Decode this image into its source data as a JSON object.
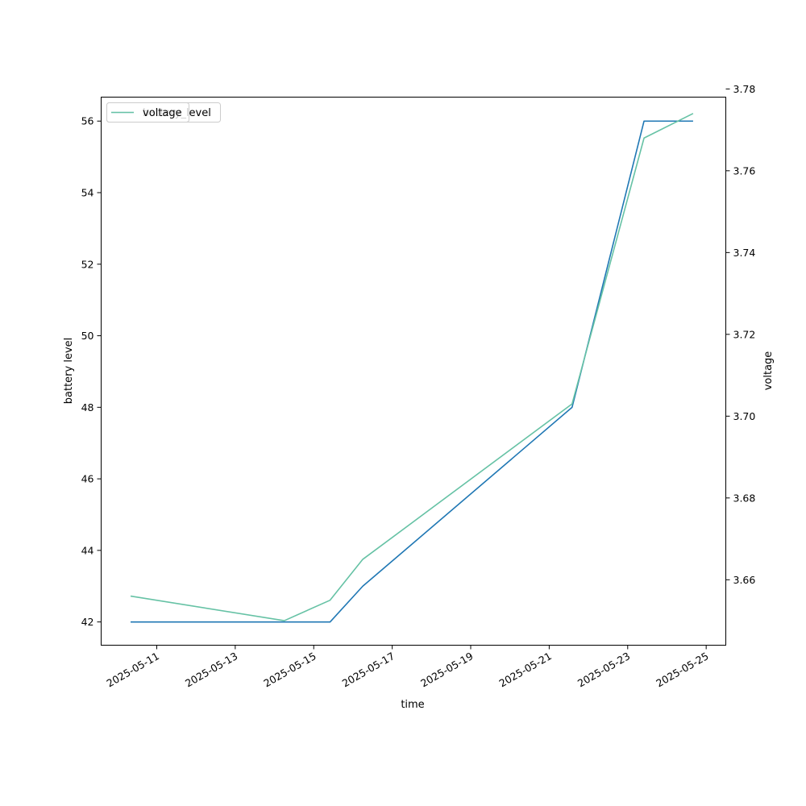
{
  "chart_data": {
    "type": "line",
    "title": "",
    "xlabel": "time",
    "ylabel_left": "battery level",
    "ylabel_right": "voltage",
    "x_tick_labels": [
      "2025-05-11",
      "2025-05-13",
      "2025-05-15",
      "2025-05-17",
      "2025-05-19",
      "2025-05-21",
      "2025-05-23",
      "2025-05-25"
    ],
    "y_left_ticks": [
      "42",
      "44",
      "46",
      "48",
      "50",
      "52",
      "54",
      "56"
    ],
    "y_right_ticks": [
      "3.66",
      "3.68",
      "3.70",
      "3.72",
      "3.74",
      "3.76",
      "3.78"
    ],
    "xlim": [
      "2025-05-09T14:00",
      "2025-05-25T12:00"
    ],
    "ylim_left": [
      41.35,
      56.67
    ],
    "ylim_right": [
      3.644,
      3.778
    ],
    "grid": false,
    "legend": [
      {
        "name": "battery_level",
        "placement": "top-left"
      },
      {
        "name": "voltage",
        "placement": "top-left"
      }
    ],
    "series": [
      {
        "name": "battery_level",
        "axis": "left",
        "color": "#1f77b4",
        "x": [
          "2025-05-10T08:00",
          "2025-05-14T06:00",
          "2025-05-15T10:00",
          "2025-05-16T06:00",
          "2025-05-21T14:00",
          "2025-05-23T10:00",
          "2025-05-24T16:00"
        ],
        "y": [
          42,
          42,
          42,
          43,
          48,
          56,
          56
        ]
      },
      {
        "name": "voltage",
        "axis": "right",
        "color": "#66c2a5",
        "x": [
          "2025-05-10T08:00",
          "2025-05-14T06:00",
          "2025-05-15T10:00",
          "2025-05-16T06:00",
          "2025-05-21T14:00",
          "2025-05-23T10:00",
          "2025-05-24T16:00"
        ],
        "y": [
          3.656,
          3.65,
          3.655,
          3.665,
          3.703,
          3.768,
          3.774
        ]
      }
    ]
  }
}
